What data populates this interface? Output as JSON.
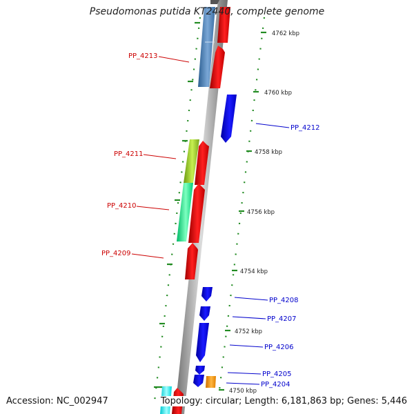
{
  "title": "Pseudomonas putida KT2440, complete genome",
  "accession_text": "Accession: NC_002947",
  "summary_text": "Topology: circular; Length: 6,181,863 bp; Genes: 5,446",
  "scale_labels": [
    "4762 kbp",
    "4760 kbp",
    "4758 kbp",
    "4756 kbp",
    "4754 kbp",
    "4752 kbp",
    "4750 kbp"
  ],
  "genes": [
    {
      "label": "PP_4213",
      "strand": "reverse",
      "color": "#cc0000"
    },
    {
      "label": "PP_4212",
      "strand": "forward",
      "color": "#0000cc"
    },
    {
      "label": "PP_4211",
      "strand": "reverse",
      "color": "#cc0000"
    },
    {
      "label": "PP_4210",
      "strand": "reverse",
      "color": "#cc0000"
    },
    {
      "label": "PP_4209",
      "strand": "reverse",
      "color": "#cc0000"
    },
    {
      "label": "PP_4208",
      "strand": "forward",
      "color": "#0000cc"
    },
    {
      "label": "PP_4207",
      "strand": "forward",
      "color": "#0000cc"
    },
    {
      "label": "PP_4206",
      "strand": "forward",
      "color": "#0000cc"
    },
    {
      "label": "PP_4205",
      "strand": "forward",
      "color": "#0000cc"
    },
    {
      "label": "PP_4204",
      "strand": "forward",
      "color": "#0000cc"
    }
  ],
  "colors": {
    "forward_cds": "#0000ff",
    "reverse_cds": "#ff0000",
    "backbone": "#888888",
    "ticks": "#228b22",
    "cog_blue": "#4a7fb5",
    "cog_yellowgreen": "#9acd32",
    "cog_springgreen": "#00ee88",
    "cog_cyan": "#00ffff",
    "cog_orange": "#ff9900"
  }
}
